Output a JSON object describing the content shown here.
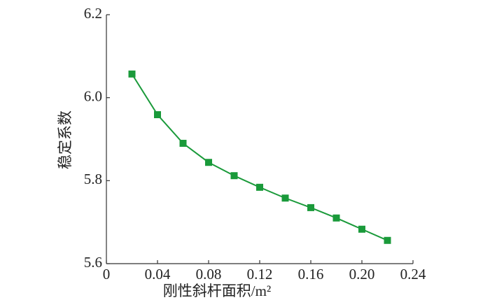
{
  "chart_data": {
    "type": "line",
    "x_label": "刚性斜杆面积/m²",
    "y_label": "稳定系数",
    "x": [
      0.02,
      0.04,
      0.06,
      0.08,
      0.1,
      0.12,
      0.14,
      0.16,
      0.18,
      0.2,
      0.22
    ],
    "series": [
      {
        "color": "#1a9a3a",
        "values": [
          6.057,
          5.959,
          5.89,
          5.844,
          5.812,
          5.784,
          5.758,
          5.735,
          5.71,
          5.683,
          5.656
        ]
      }
    ],
    "xlim": [
      0,
      0.24
    ],
    "xticks": [
      0,
      0.04,
      0.08,
      0.12,
      0.16,
      {
        "value": 0.2,
        "label": "0.20"
      },
      0.24
    ],
    "ylim": [
      5.6,
      6.2
    ],
    "yticks": [
      5.6,
      5.8,
      {
        "value": 6.0,
        "label": "6.0"
      },
      6.2
    ],
    "grid": false
  }
}
